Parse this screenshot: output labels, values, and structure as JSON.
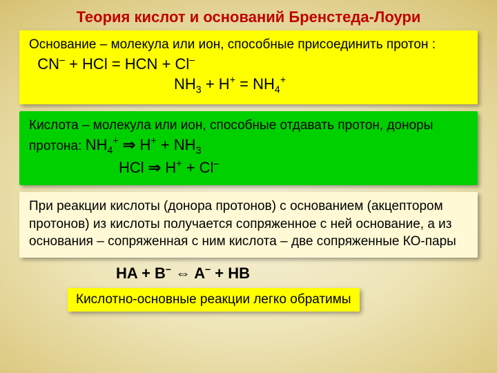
{
  "colors": {
    "title": "#c00000",
    "yellow_box": "#ffff00",
    "green_box": "#00d000",
    "cream_box": "#fff9d6",
    "bg_center": "#f5f0d8",
    "bg_edge": "#9a7f28",
    "text": "#000000"
  },
  "typography": {
    "title_fontsize": 22,
    "body_fontsize": 19,
    "chem_fontsize": 22,
    "family": "Arial"
  },
  "title": "Теория кислот и оснований Бренстеда-Лоури",
  "base_box": {
    "intro": "Основание – молекула или ион, способные присоединить протон :",
    "eq1_lhs_cn": "CN",
    "eq1_lhs_cn_sup": "–",
    "eq1_plus1": " + HCl = HCN + Cl",
    "eq1_cl_sup": "–",
    "eq2_nh3": "NH",
    "eq2_nh3_sub": "3",
    "eq2_mid": "  +  H",
    "eq2_h_sup": "+",
    "eq2_eq": " = NH",
    "eq2_nh4_sub": "4",
    "eq2_nh4_sup": "+"
  },
  "acid_box": {
    "intro": "Кислота – молекула или ион, способные отдавать протон, доноры протона:",
    "eq1_nh4": " NH",
    "eq1_nh4_sub": "4",
    "eq1_nh4_sup": "+",
    "eq1_arrow": " ⇒ ",
    "eq1_h": "H",
    "eq1_h_sup": "+",
    "eq1_plus": " + NH",
    "eq1_nh3_sub": "3",
    "eq2_hcl": "HCl ",
    "eq2_arrow": "⇒ ",
    "eq2_h": "H",
    "eq2_h_sup": "+",
    "eq2_plus": " + Cl",
    "eq2_cl_sup": "–"
  },
  "pair_box": {
    "text": "При реакции кислоты (донора протонов) с основанием (акцептором протонов) из кислоты получается сопряженное с ней основание, а из основания – сопряженная с ним кислота – две сопряженные КО-пары"
  },
  "general_eq": {
    "ha": "HA + B",
    "b_sup": "–",
    "dbl": " ⇔ A",
    "a_sup": "–",
    "hb": " + HB"
  },
  "footer": "Кислотно-основные реакции легко обратимы"
}
